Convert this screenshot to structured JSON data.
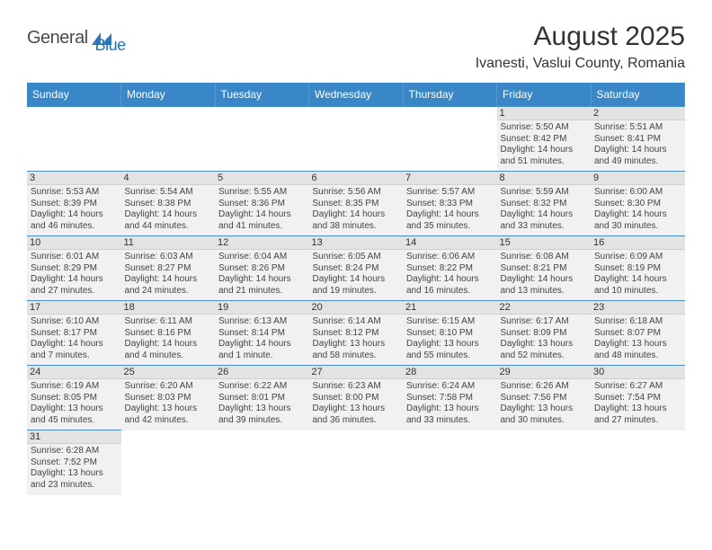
{
  "logo": {
    "word1": "General",
    "word2": "Blue"
  },
  "title": "August 2025",
  "location": "Ivanesti, Vaslui County, Romania",
  "daynames": [
    "Sunday",
    "Monday",
    "Tuesday",
    "Wednesday",
    "Thursday",
    "Friday",
    "Saturday"
  ],
  "colors": {
    "header_bg": "#3a87c7",
    "row_bg": "#f1f1f1",
    "daynum_bg": "#e3e3e3",
    "border": "#4a8fc4"
  },
  "weeks": [
    [
      null,
      null,
      null,
      null,
      null,
      {
        "n": "1",
        "sr": "Sunrise: 5:50 AM",
        "ss": "Sunset: 8:42 PM",
        "d1": "Daylight: 14 hours",
        "d2": "and 51 minutes."
      },
      {
        "n": "2",
        "sr": "Sunrise: 5:51 AM",
        "ss": "Sunset: 8:41 PM",
        "d1": "Daylight: 14 hours",
        "d2": "and 49 minutes."
      }
    ],
    [
      {
        "n": "3",
        "sr": "Sunrise: 5:53 AM",
        "ss": "Sunset: 8:39 PM",
        "d1": "Daylight: 14 hours",
        "d2": "and 46 minutes."
      },
      {
        "n": "4",
        "sr": "Sunrise: 5:54 AM",
        "ss": "Sunset: 8:38 PM",
        "d1": "Daylight: 14 hours",
        "d2": "and 44 minutes."
      },
      {
        "n": "5",
        "sr": "Sunrise: 5:55 AM",
        "ss": "Sunset: 8:36 PM",
        "d1": "Daylight: 14 hours",
        "d2": "and 41 minutes."
      },
      {
        "n": "6",
        "sr": "Sunrise: 5:56 AM",
        "ss": "Sunset: 8:35 PM",
        "d1": "Daylight: 14 hours",
        "d2": "and 38 minutes."
      },
      {
        "n": "7",
        "sr": "Sunrise: 5:57 AM",
        "ss": "Sunset: 8:33 PM",
        "d1": "Daylight: 14 hours",
        "d2": "and 35 minutes."
      },
      {
        "n": "8",
        "sr": "Sunrise: 5:59 AM",
        "ss": "Sunset: 8:32 PM",
        "d1": "Daylight: 14 hours",
        "d2": "and 33 minutes."
      },
      {
        "n": "9",
        "sr": "Sunrise: 6:00 AM",
        "ss": "Sunset: 8:30 PM",
        "d1": "Daylight: 14 hours",
        "d2": "and 30 minutes."
      }
    ],
    [
      {
        "n": "10",
        "sr": "Sunrise: 6:01 AM",
        "ss": "Sunset: 8:29 PM",
        "d1": "Daylight: 14 hours",
        "d2": "and 27 minutes."
      },
      {
        "n": "11",
        "sr": "Sunrise: 6:03 AM",
        "ss": "Sunset: 8:27 PM",
        "d1": "Daylight: 14 hours",
        "d2": "and 24 minutes."
      },
      {
        "n": "12",
        "sr": "Sunrise: 6:04 AM",
        "ss": "Sunset: 8:26 PM",
        "d1": "Daylight: 14 hours",
        "d2": "and 21 minutes."
      },
      {
        "n": "13",
        "sr": "Sunrise: 6:05 AM",
        "ss": "Sunset: 8:24 PM",
        "d1": "Daylight: 14 hours",
        "d2": "and 19 minutes."
      },
      {
        "n": "14",
        "sr": "Sunrise: 6:06 AM",
        "ss": "Sunset: 8:22 PM",
        "d1": "Daylight: 14 hours",
        "d2": "and 16 minutes."
      },
      {
        "n": "15",
        "sr": "Sunrise: 6:08 AM",
        "ss": "Sunset: 8:21 PM",
        "d1": "Daylight: 14 hours",
        "d2": "and 13 minutes."
      },
      {
        "n": "16",
        "sr": "Sunrise: 6:09 AM",
        "ss": "Sunset: 8:19 PM",
        "d1": "Daylight: 14 hours",
        "d2": "and 10 minutes."
      }
    ],
    [
      {
        "n": "17",
        "sr": "Sunrise: 6:10 AM",
        "ss": "Sunset: 8:17 PM",
        "d1": "Daylight: 14 hours",
        "d2": "and 7 minutes."
      },
      {
        "n": "18",
        "sr": "Sunrise: 6:11 AM",
        "ss": "Sunset: 8:16 PM",
        "d1": "Daylight: 14 hours",
        "d2": "and 4 minutes."
      },
      {
        "n": "19",
        "sr": "Sunrise: 6:13 AM",
        "ss": "Sunset: 8:14 PM",
        "d1": "Daylight: 14 hours",
        "d2": "and 1 minute."
      },
      {
        "n": "20",
        "sr": "Sunrise: 6:14 AM",
        "ss": "Sunset: 8:12 PM",
        "d1": "Daylight: 13 hours",
        "d2": "and 58 minutes."
      },
      {
        "n": "21",
        "sr": "Sunrise: 6:15 AM",
        "ss": "Sunset: 8:10 PM",
        "d1": "Daylight: 13 hours",
        "d2": "and 55 minutes."
      },
      {
        "n": "22",
        "sr": "Sunrise: 6:17 AM",
        "ss": "Sunset: 8:09 PM",
        "d1": "Daylight: 13 hours",
        "d2": "and 52 minutes."
      },
      {
        "n": "23",
        "sr": "Sunrise: 6:18 AM",
        "ss": "Sunset: 8:07 PM",
        "d1": "Daylight: 13 hours",
        "d2": "and 48 minutes."
      }
    ],
    [
      {
        "n": "24",
        "sr": "Sunrise: 6:19 AM",
        "ss": "Sunset: 8:05 PM",
        "d1": "Daylight: 13 hours",
        "d2": "and 45 minutes."
      },
      {
        "n": "25",
        "sr": "Sunrise: 6:20 AM",
        "ss": "Sunset: 8:03 PM",
        "d1": "Daylight: 13 hours",
        "d2": "and 42 minutes."
      },
      {
        "n": "26",
        "sr": "Sunrise: 6:22 AM",
        "ss": "Sunset: 8:01 PM",
        "d1": "Daylight: 13 hours",
        "d2": "and 39 minutes."
      },
      {
        "n": "27",
        "sr": "Sunrise: 6:23 AM",
        "ss": "Sunset: 8:00 PM",
        "d1": "Daylight: 13 hours",
        "d2": "and 36 minutes."
      },
      {
        "n": "28",
        "sr": "Sunrise: 6:24 AM",
        "ss": "Sunset: 7:58 PM",
        "d1": "Daylight: 13 hours",
        "d2": "and 33 minutes."
      },
      {
        "n": "29",
        "sr": "Sunrise: 6:26 AM",
        "ss": "Sunset: 7:56 PM",
        "d1": "Daylight: 13 hours",
        "d2": "and 30 minutes."
      },
      {
        "n": "30",
        "sr": "Sunrise: 6:27 AM",
        "ss": "Sunset: 7:54 PM",
        "d1": "Daylight: 13 hours",
        "d2": "and 27 minutes."
      }
    ],
    [
      {
        "n": "31",
        "sr": "Sunrise: 6:28 AM",
        "ss": "Sunset: 7:52 PM",
        "d1": "Daylight: 13 hours",
        "d2": "and 23 minutes."
      },
      null,
      null,
      null,
      null,
      null,
      null
    ]
  ]
}
